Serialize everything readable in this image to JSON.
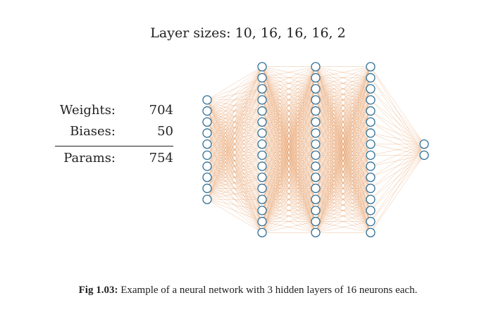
{
  "title": "Layer sizes: 10, 16, 16, 16, 2",
  "network": {
    "layer_sizes": [
      10,
      16,
      16,
      16,
      2
    ],
    "edge_color": "#e7a36f",
    "node_stroke_color": "#2f6f96"
  },
  "stats": {
    "weights_label": "Weights:",
    "weights_value": "704",
    "biases_label": "Biases:",
    "biases_value": "50",
    "params_label": "Params:",
    "params_value": "754"
  },
  "caption": {
    "prefix": "Fig 1.03:",
    "text": " Example of a neural network with 3 hidden layers of 16 neurons each."
  }
}
